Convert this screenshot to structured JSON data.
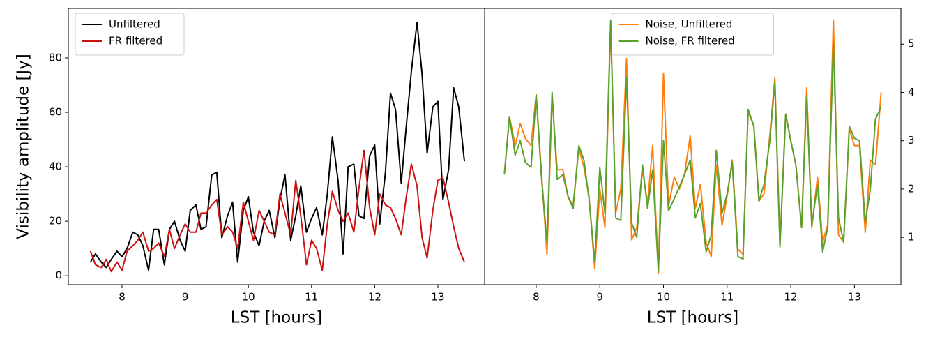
{
  "chart_data": [
    {
      "type": "line",
      "xlabel": "LST [hours]",
      "ylabel": "Visibility amplitude [Jy]",
      "y_axis_side": "left",
      "legend": "upper left",
      "x": [
        7.5,
        7.58,
        7.67,
        7.75,
        7.83,
        7.92,
        8,
        8.08,
        8.17,
        8.25,
        8.33,
        8.42,
        8.5,
        8.58,
        8.67,
        8.75,
        8.83,
        8.92,
        9,
        9.08,
        9.17,
        9.25,
        9.33,
        9.42,
        9.5,
        9.58,
        9.67,
        9.75,
        9.83,
        9.92,
        10,
        10.08,
        10.17,
        10.25,
        10.33,
        10.42,
        10.5,
        10.58,
        10.67,
        10.75,
        10.83,
        10.92,
        11,
        11.08,
        11.17,
        11.25,
        11.33,
        11.42,
        11.5,
        11.58,
        11.67,
        11.75,
        11.83,
        11.92,
        12,
        12.08,
        12.17,
        12.25,
        12.33,
        12.42,
        12.5,
        12.58,
        12.67,
        12.75,
        12.83,
        12.92,
        13,
        13.08,
        13.17,
        13.25,
        13.33,
        13.42
      ],
      "xlim": [
        7.15,
        13.74
      ],
      "xticks": [
        8,
        9,
        10,
        11,
        12,
        13
      ],
      "ylim": [
        -3.3,
        98.2
      ],
      "yticks": [
        0,
        20,
        40,
        60,
        80
      ],
      "series": [
        {
          "name": "Unfiltered",
          "color": "#000000",
          "values": [
            5,
            8,
            5,
            3,
            6,
            9,
            7,
            10,
            16,
            15,
            11,
            2,
            17,
            17,
            4,
            17,
            20,
            13,
            9,
            24,
            26,
            17,
            18,
            37,
            38,
            14,
            22,
            27,
            5,
            24,
            29,
            16,
            11,
            20,
            24,
            14,
            28,
            37,
            13,
            22,
            33,
            16,
            21,
            25,
            15,
            30,
            51,
            35,
            8,
            40,
            41,
            22,
            21,
            44,
            48,
            19,
            38,
            67,
            61,
            34,
            55,
            75,
            93,
            74,
            45,
            62,
            64,
            28,
            39,
            69,
            62,
            42
          ]
        },
        {
          "name": "FR filtered",
          "color": "#cc1111",
          "values": [
            9,
            4,
            3,
            6,
            1.5,
            5,
            2,
            9,
            11,
            13,
            16,
            9,
            10,
            12,
            7,
            17,
            10,
            15,
            19,
            16,
            16,
            23,
            23,
            26,
            28,
            15,
            18,
            16,
            10,
            27,
            20,
            13,
            24,
            20,
            16,
            15,
            30,
            23,
            15,
            35,
            22,
            4,
            13,
            10,
            2,
            19,
            31,
            24,
            20,
            23,
            16,
            32,
            46,
            25,
            15,
            30,
            26,
            25,
            21,
            15,
            29,
            41,
            33,
            14,
            6.5,
            24,
            35,
            36,
            27,
            18,
            10,
            5
          ]
        }
      ]
    },
    {
      "type": "line",
      "xlabel": "LST [hours]",
      "y_axis_side": "right",
      "legend": "upper center",
      "x": [
        7.5,
        7.58,
        7.67,
        7.75,
        7.83,
        7.92,
        8,
        8.08,
        8.17,
        8.25,
        8.33,
        8.42,
        8.5,
        8.58,
        8.67,
        8.75,
        8.83,
        8.92,
        9,
        9.08,
        9.17,
        9.25,
        9.33,
        9.42,
        9.5,
        9.58,
        9.67,
        9.75,
        9.83,
        9.92,
        10,
        10.08,
        10.17,
        10.25,
        10.33,
        10.42,
        10.5,
        10.58,
        10.67,
        10.75,
        10.83,
        10.92,
        11,
        11.08,
        11.17,
        11.25,
        11.33,
        11.42,
        11.5,
        11.58,
        11.67,
        11.75,
        11.83,
        11.92,
        12,
        12.08,
        12.17,
        12.25,
        12.33,
        12.42,
        12.5,
        12.58,
        12.67,
        12.75,
        12.83,
        12.92,
        13,
        13.08,
        13.17,
        13.25,
        13.33,
        13.42
      ],
      "xlim": [
        7.19,
        13.73
      ],
      "xticks": [
        8,
        9,
        10,
        11,
        12,
        13
      ],
      "ylim": [
        0.02,
        5.74
      ],
      "yticks": [
        1,
        2,
        3,
        4,
        5
      ],
      "series": [
        {
          "name": "Noise, Unfiltered",
          "color": "#ff7f0e",
          "values": [
            2.3,
            3.5,
            2.9,
            3.35,
            3.05,
            2.9,
            3.95,
            2.4,
            0.65,
            3.9,
            2.4,
            2.4,
            1.85,
            1.65,
            2.85,
            2.45,
            1.85,
            0.35,
            2.0,
            1.2,
            5.4,
            1.5,
            2.0,
            4.7,
            0.95,
            1.2,
            2.4,
            1.7,
            2.9,
            0.25,
            4.4,
            1.65,
            2.25,
            2.0,
            2.3,
            3.1,
            1.6,
            2.1,
            0.9,
            0.6,
            2.5,
            1.25,
            1.85,
            2.6,
            0.75,
            0.65,
            3.6,
            3.3,
            1.75,
            1.9,
            3.1,
            4.3,
            0.85,
            3.55,
            3.0,
            2.5,
            1.2,
            4.1,
            1.2,
            2.25,
            0.9,
            1.25,
            5.5,
            1.05,
            0.9,
            3.25,
            2.9,
            2.9,
            1.1,
            2.6,
            2.5,
            4.0
          ]
        },
        {
          "name": "Noise, FR filtered",
          "color": "#5aa02c",
          "values": [
            2.3,
            3.5,
            2.7,
            3.0,
            2.55,
            2.45,
            3.95,
            2.3,
            0.9,
            4.0,
            2.2,
            2.3,
            1.85,
            1.6,
            2.9,
            2.6,
            1.8,
            0.5,
            2.45,
            1.5,
            5.5,
            1.4,
            1.35,
            4.3,
            1.3,
            1.0,
            2.5,
            1.6,
            2.4,
            0.3,
            3.0,
            1.55,
            1.8,
            2.05,
            2.3,
            2.6,
            1.4,
            1.7,
            0.7,
            1.05,
            2.8,
            1.5,
            1.9,
            2.55,
            0.6,
            0.55,
            3.65,
            3.3,
            1.75,
            2.1,
            3.0,
            4.2,
            0.8,
            3.55,
            3.0,
            2.5,
            1.2,
            3.9,
            1.25,
            2.1,
            0.7,
            1.2,
            5.0,
            1.4,
            0.9,
            3.3,
            3.05,
            3.0,
            1.3,
            2.0,
            3.45,
            3.7
          ]
        }
      ]
    }
  ]
}
